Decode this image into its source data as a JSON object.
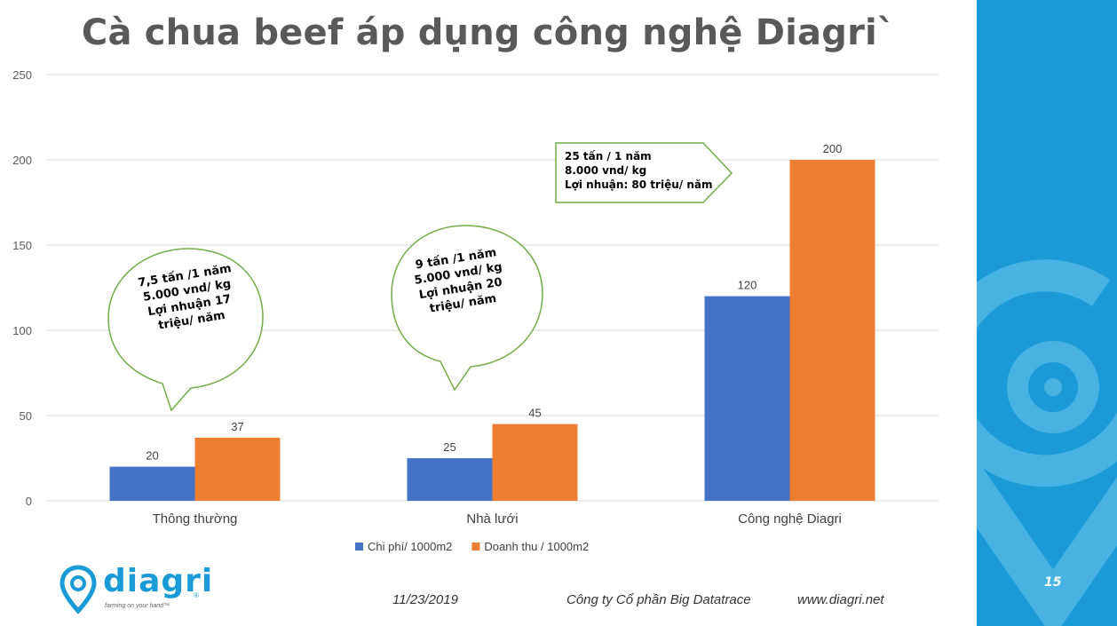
{
  "slide": {
    "title": "Cà chua beef áp dụng công nghệ Diagri`",
    "page_number": "15"
  },
  "chart_data": {
    "type": "bar",
    "categories": [
      "Thông thường",
      "Nhà lưới",
      "Công nghệ Diagri"
    ],
    "series": [
      {
        "name": "Chi phí/ 1000m2",
        "values": [
          20,
          25,
          120
        ],
        "color": "#4472c4"
      },
      {
        "name": "Doanh thu / 1000m2",
        "values": [
          37,
          45,
          200
        ],
        "color": "#ed7d31"
      }
    ],
    "ylim": [
      0,
      250
    ],
    "yticks": [
      0,
      50,
      100,
      150,
      200,
      250
    ],
    "grid": true,
    "legend": "bottom",
    "data_labels": true
  },
  "callouts": [
    {
      "text": "7,5 tấn /1 năm\n5.000 vnd/ kg\nLợi nhuận 17\ntriệu/ năm"
    },
    {
      "text": "9  tấn /1 năm\n5.000 vnd/ kg\nLợi nhuận 20\ntriệu/ năm"
    },
    {
      "text": "25 tấn / 1 năm\n8.000 vnd/ kg\nLợi nhuận: 80 triệu/ năm"
    }
  ],
  "footer": {
    "date": "11/23/2019",
    "company": "Công ty Cổ phần Big Datatrace",
    "website": "www.diagri.net"
  },
  "logo": {
    "word": "diagri",
    "tagline": "farming on your hand™",
    "mark": "®"
  },
  "colors": {
    "side_panel": "#1a9bd7",
    "side_panel_light": "#48b3e2",
    "callout_border": "#70ad47",
    "grid": "#d9d9d9"
  }
}
